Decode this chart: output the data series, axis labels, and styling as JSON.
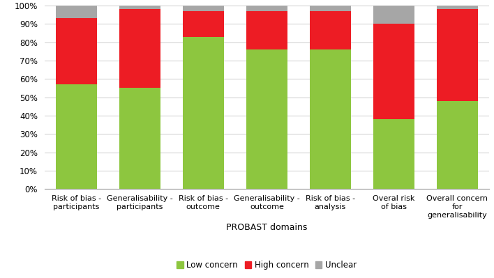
{
  "categories": [
    "Risk of bias -\nparticipants",
    "Generalisability -\nparticipants",
    "Risk of bias -\noutcome",
    "Generalisability -\noutcome",
    "Risk of bias -\nanalysis",
    "Overal risk\nof bias",
    "Overall concern\nfor\ngeneralisability"
  ],
  "low_concern": [
    57,
    55,
    83,
    76,
    76,
    38,
    48
  ],
  "high_concern": [
    36,
    43,
    14,
    21,
    21,
    52,
    50
  ],
  "unclear": [
    7,
    2,
    3,
    3,
    3,
    10,
    2
  ],
  "colors": {
    "low": "#8dc63f",
    "high": "#ed1c24",
    "unclear": "#a6a6a6"
  },
  "xlabel": "PROBAST domains",
  "ylabel": "",
  "ylim": [
    0,
    100
  ],
  "yticks": [
    0,
    10,
    20,
    30,
    40,
    50,
    60,
    70,
    80,
    90,
    100
  ],
  "ytick_labels": [
    "0%",
    "10%",
    "20%",
    "30%",
    "40%",
    "50%",
    "60%",
    "70%",
    "80%",
    "90%",
    "100%"
  ],
  "legend_labels": [
    "Low concern",
    "High concern",
    "Unclear"
  ],
  "background_color": "#ffffff",
  "grid_color": "#cccccc"
}
